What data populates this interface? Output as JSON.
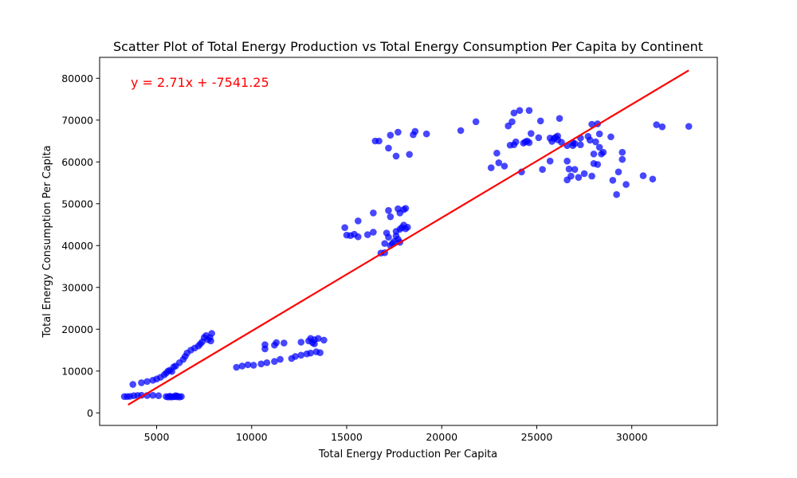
{
  "chart_data": {
    "type": "scatter",
    "title": "Scatter Plot of Total Energy Production vs Total Energy Consumption Per Capita by Continent",
    "xlabel": "Total Energy Production Per Capita",
    "ylabel": "Total Energy Consumption Per Capita",
    "xlim": [
      2000,
      34500
    ],
    "ylim": [
      -3000,
      85000
    ],
    "x_ticks": [
      5000,
      10000,
      15000,
      20000,
      25000,
      30000
    ],
    "y_ticks": [
      0,
      10000,
      20000,
      30000,
      40000,
      50000,
      60000,
      70000,
      80000
    ],
    "grid": false,
    "legend": "none",
    "point_color": "#0000ff",
    "line_color": "#ff0000",
    "regression": {
      "slope": 2.71,
      "intercept": -7541.25,
      "x_start": 3500,
      "x_end": 33000
    },
    "equation_label": "y = 2.71x + -7541.25",
    "points": [
      [
        3300,
        3900
      ],
      [
        3450,
        3900
      ],
      [
        3600,
        3950
      ],
      [
        3800,
        4100
      ],
      [
        4000,
        4150
      ],
      [
        4200,
        4200
      ],
      [
        4500,
        4150
      ],
      [
        4800,
        4200
      ],
      [
        5100,
        4100
      ],
      [
        5500,
        3900
      ],
      [
        5600,
        3800
      ],
      [
        5750,
        3800
      ],
      [
        5850,
        3850
      ],
      [
        5950,
        3900
      ],
      [
        6050,
        3850
      ],
      [
        6100,
        4000
      ],
      [
        6200,
        3800
      ],
      [
        6300,
        3900
      ],
      [
        5700,
        4000
      ],
      [
        6000,
        4100
      ],
      [
        3750,
        6800
      ],
      [
        4200,
        7200
      ],
      [
        4500,
        7500
      ],
      [
        4800,
        7800
      ],
      [
        5000,
        8100
      ],
      [
        5200,
        8500
      ],
      [
        5400,
        9100
      ],
      [
        5500,
        9500
      ],
      [
        5600,
        10000
      ],
      [
        5700,
        10200
      ],
      [
        5800,
        9900
      ],
      [
        5900,
        11000
      ],
      [
        6000,
        11200
      ],
      [
        6200,
        12000
      ],
      [
        6400,
        12800
      ],
      [
        6500,
        13500
      ],
      [
        6600,
        14300
      ],
      [
        6800,
        15000
      ],
      [
        7000,
        15500
      ],
      [
        7200,
        16000
      ],
      [
        7300,
        16500
      ],
      [
        7400,
        17000
      ],
      [
        7500,
        18000
      ],
      [
        7600,
        18500
      ],
      [
        7700,
        17500
      ],
      [
        7800,
        18000
      ],
      [
        7900,
        19000
      ],
      [
        7850,
        17200
      ],
      [
        9200,
        10900
      ],
      [
        9500,
        11200
      ],
      [
        9800,
        11500
      ],
      [
        10100,
        11400
      ],
      [
        10500,
        11700
      ],
      [
        10800,
        12000
      ],
      [
        11200,
        12300
      ],
      [
        10700,
        15300
      ],
      [
        10700,
        16300
      ],
      [
        11200,
        16200
      ],
      [
        11300,
        16800
      ],
      [
        11700,
        16700
      ],
      [
        11500,
        12800
      ],
      [
        12100,
        13000
      ],
      [
        12300,
        13500
      ],
      [
        12600,
        13800
      ],
      [
        12900,
        14100
      ],
      [
        13100,
        14300
      ],
      [
        13400,
        14600
      ],
      [
        13600,
        14400
      ],
      [
        12600,
        16900
      ],
      [
        13000,
        17200
      ],
      [
        13200,
        16800
      ],
      [
        13300,
        17500
      ],
      [
        13500,
        17800
      ],
      [
        13800,
        17400
      ],
      [
        13100,
        17800
      ],
      [
        13300,
        16500
      ],
      [
        14900,
        44300
      ],
      [
        15000,
        42500
      ],
      [
        15200,
        42400
      ],
      [
        15400,
        42700
      ],
      [
        15600,
        42100
      ],
      [
        16100,
        42600
      ],
      [
        15600,
        45900
      ],
      [
        16400,
        43200
      ],
      [
        16400,
        47800
      ],
      [
        16800,
        38200
      ],
      [
        17000,
        38300
      ],
      [
        17100,
        43000
      ],
      [
        17200,
        42000
      ],
      [
        17300,
        40000
      ],
      [
        17400,
        40500
      ],
      [
        17500,
        41000
      ],
      [
        17600,
        42300
      ],
      [
        17700,
        41500
      ],
      [
        17800,
        40800
      ],
      [
        17200,
        48400
      ],
      [
        17300,
        46900
      ],
      [
        17600,
        43400
      ],
      [
        17800,
        43900
      ],
      [
        17700,
        48800
      ],
      [
        17800,
        47800
      ],
      [
        18000,
        48600
      ],
      [
        18100,
        48900
      ],
      [
        18000,
        44900
      ],
      [
        18200,
        44400
      ],
      [
        17900,
        44300
      ],
      [
        18100,
        44000
      ],
      [
        17000,
        40500
      ],
      [
        16500,
        65000
      ],
      [
        16700,
        65000
      ],
      [
        17200,
        63300
      ],
      [
        17300,
        66400
      ],
      [
        17600,
        61400
      ],
      [
        17700,
        67100
      ],
      [
        18300,
        61800
      ],
      [
        18500,
        66500
      ],
      [
        18600,
        67300
      ],
      [
        19200,
        66700
      ],
      [
        21000,
        67500
      ],
      [
        21800,
        69600
      ],
      [
        22600,
        58600
      ],
      [
        22900,
        62100
      ],
      [
        23000,
        59800
      ],
      [
        23300,
        59000
      ],
      [
        23500,
        68600
      ],
      [
        23700,
        69600
      ],
      [
        23800,
        71700
      ],
      [
        23600,
        64000
      ],
      [
        23800,
        64100
      ],
      [
        23900,
        64800
      ],
      [
        24100,
        72300
      ],
      [
        24200,
        57600
      ],
      [
        24300,
        64500
      ],
      [
        24400,
        64800
      ],
      [
        24500,
        65000
      ],
      [
        24600,
        64600
      ],
      [
        24600,
        72300
      ],
      [
        24700,
        66800
      ],
      [
        25100,
        65800
      ],
      [
        25200,
        69800
      ],
      [
        25300,
        58200
      ],
      [
        25700,
        65700
      ],
      [
        25700,
        60200
      ],
      [
        25800,
        64900
      ],
      [
        25900,
        65600
      ],
      [
        26000,
        65900
      ],
      [
        26100,
        65300
      ],
      [
        26100,
        66200
      ],
      [
        26200,
        70400
      ],
      [
        26300,
        64700
      ],
      [
        26600,
        63900
      ],
      [
        26600,
        60200
      ],
      [
        26600,
        55700
      ],
      [
        26700,
        58300
      ],
      [
        26800,
        56600
      ],
      [
        26900,
        63900
      ],
      [
        26900,
        64600
      ],
      [
        27000,
        58200
      ],
      [
        27000,
        64400
      ],
      [
        27200,
        56300
      ],
      [
        27300,
        64100
      ],
      [
        27300,
        65700
      ],
      [
        27500,
        57200
      ],
      [
        27700,
        66100
      ],
      [
        27800,
        65200
      ],
      [
        27900,
        69000
      ],
      [
        27900,
        56600
      ],
      [
        28000,
        59600
      ],
      [
        28000,
        61900
      ],
      [
        28100,
        64800
      ],
      [
        28200,
        69100
      ],
      [
        28200,
        59400
      ],
      [
        28300,
        66700
      ],
      [
        28300,
        63500
      ],
      [
        28400,
        61900
      ],
      [
        28500,
        62300
      ],
      [
        28900,
        66000
      ],
      [
        29000,
        55600
      ],
      [
        29200,
        52200
      ],
      [
        29300,
        57600
      ],
      [
        29500,
        60600
      ],
      [
        29500,
        62300
      ],
      [
        29700,
        54600
      ],
      [
        30600,
        56700
      ],
      [
        31100,
        55900
      ],
      [
        31300,
        68900
      ],
      [
        31600,
        68400
      ],
      [
        33000,
        68500
      ]
    ]
  }
}
